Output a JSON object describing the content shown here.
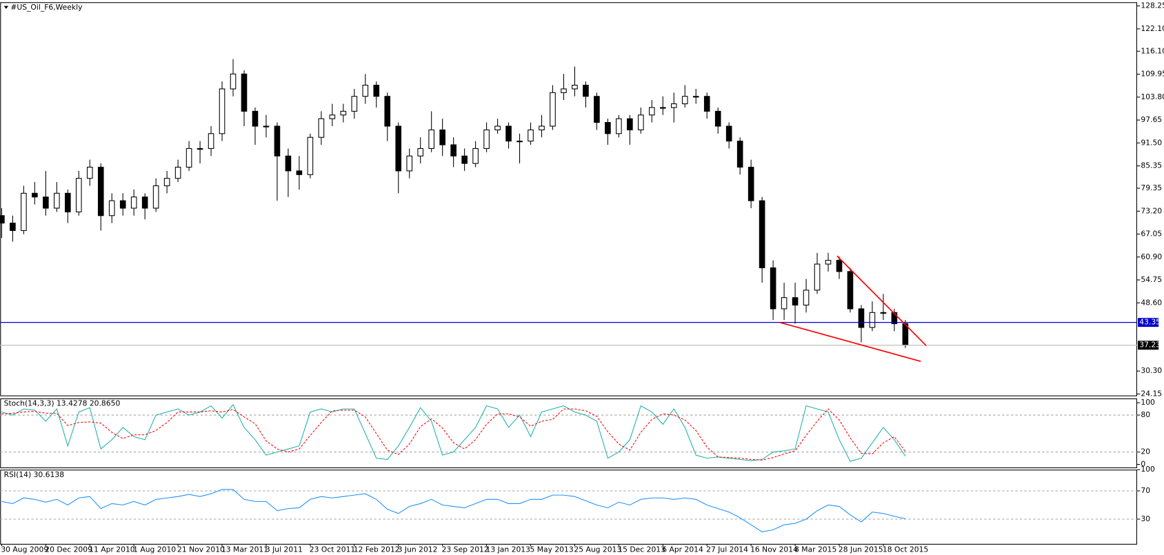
{
  "chart_data": [
    {
      "type": "candlestick",
      "title": "#US_Oil_F6,Weekly",
      "categories": [
        "30 Aug 2009",
        null,
        null,
        null,
        "20 Dec 2009",
        null,
        null,
        null,
        "11 Apr 2010",
        null,
        null,
        null,
        "1 Aug 2010",
        null,
        null,
        null,
        "21 Nov 2010",
        null,
        null,
        null,
        "13 Mar 2011",
        null,
        null,
        null,
        "3 Jul 2011",
        null,
        null,
        null,
        "23 Oct 2011",
        null,
        null,
        null,
        "12 Feb 2012",
        null,
        null,
        null,
        "3 Jun 2012",
        null,
        null,
        null,
        "23 Sep 2012",
        null,
        null,
        null,
        "13 Jan 2013",
        null,
        null,
        null,
        "5 May 2013",
        null,
        null,
        null,
        "25 Aug 2013",
        null,
        null,
        null,
        "15 Dec 2013",
        null,
        null,
        null,
        "6 Apr 2014",
        null,
        null,
        null,
        "27 Jul 2014",
        null,
        null,
        null,
        "16 Nov 2014",
        null,
        null,
        null,
        "8 Mar 2015",
        null,
        null,
        null,
        "28 Jun 2015",
        null,
        null,
        null,
        "18 Oct 2015",
        null,
        null
      ],
      "ohlc": [
        [
          72,
          74,
          66,
          70
        ],
        [
          70,
          72,
          65,
          68
        ],
        [
          68,
          80,
          67,
          78
        ],
        [
          78,
          81,
          75,
          77
        ],
        [
          77,
          84,
          72,
          74
        ],
        [
          74,
          81,
          73,
          78
        ],
        [
          78,
          79,
          70,
          73
        ],
        [
          73,
          84,
          72,
          82
        ],
        [
          82,
          87,
          80,
          85
        ],
        [
          85,
          86,
          68,
          72
        ],
        [
          72,
          78,
          70,
          76
        ],
        [
          76,
          78,
          72,
          74
        ],
        [
          74,
          79,
          72,
          77
        ],
        [
          77,
          78,
          71,
          74
        ],
        [
          74,
          82,
          73,
          80
        ],
        [
          80,
          84,
          78,
          82
        ],
        [
          82,
          87,
          81,
          85
        ],
        [
          85,
          92,
          84,
          90
        ],
        [
          90,
          92,
          86,
          90
        ],
        [
          90,
          96,
          88,
          94
        ],
        [
          94,
          108,
          92,
          106
        ],
        [
          106,
          114,
          104,
          110
        ],
        [
          110,
          111,
          96,
          100
        ],
        [
          100,
          101,
          91,
          96
        ],
        [
          96,
          99,
          93,
          96
        ],
        [
          96,
          97,
          76,
          88
        ],
        [
          88,
          90,
          77,
          84
        ],
        [
          84,
          88,
          79,
          83
        ],
        [
          83,
          94,
          82,
          93
        ],
        [
          93,
          100,
          91,
          98
        ],
        [
          98,
          102,
          96,
          99
        ],
        [
          99,
          102,
          97,
          100
        ],
        [
          100,
          106,
          98,
          104
        ],
        [
          104,
          110,
          102,
          107
        ],
        [
          107,
          108,
          101,
          104
        ],
        [
          104,
          105,
          92,
          96
        ],
        [
          96,
          97,
          78,
          84
        ],
        [
          84,
          90,
          82,
          88
        ],
        [
          88,
          93,
          86,
          90
        ],
        [
          90,
          100,
          89,
          95
        ],
        [
          95,
          98,
          88,
          91
        ],
        [
          91,
          93,
          85,
          88
        ],
        [
          88,
          90,
          84,
          86
        ],
        [
          86,
          92,
          85,
          90
        ],
        [
          90,
          97,
          89,
          95
        ],
        [
          95,
          98,
          94,
          96
        ],
        [
          96,
          97,
          90,
          92
        ],
        [
          92,
          94,
          86,
          92
        ],
        [
          92,
          97,
          91,
          95
        ],
        [
          95,
          99,
          93,
          96
        ],
        [
          96,
          107,
          95,
          105
        ],
        [
          105,
          110,
          103,
          106
        ],
        [
          106,
          112,
          104,
          107
        ],
        [
          107,
          108,
          101,
          104
        ],
        [
          104,
          105,
          95,
          97
        ],
        [
          97,
          98,
          91,
          94
        ],
        [
          94,
          99,
          93,
          98
        ],
        [
          98,
          99,
          91,
          95
        ],
        [
          95,
          101,
          94,
          99
        ],
        [
          99,
          103,
          97,
          101
        ],
        [
          101,
          104,
          99,
          101
        ],
        [
          101,
          105,
          97,
          102
        ],
        [
          102,
          107,
          101,
          104
        ],
        [
          104,
          106,
          102,
          104
        ],
        [
          104,
          105,
          98,
          100
        ],
        [
          100,
          101,
          94,
          96
        ],
        [
          96,
          97,
          90,
          92
        ],
        [
          92,
          93,
          83,
          85
        ],
        [
          85,
          87,
          74,
          76
        ],
        [
          76,
          77,
          54,
          58
        ],
        [
          58,
          60,
          44,
          47
        ],
        [
          47,
          54,
          44,
          50
        ],
        [
          50,
          54,
          43,
          48
        ],
        [
          48,
          55,
          46,
          52
        ],
        [
          52,
          62,
          51,
          59
        ],
        [
          59,
          62,
          57,
          60
        ],
        [
          60,
          61,
          55,
          57
        ],
        [
          57,
          58,
          46,
          47
        ],
        [
          47,
          48,
          38,
          42
        ],
        [
          42,
          49,
          41,
          46
        ],
        [
          46,
          51,
          44,
          46
        ],
        [
          46,
          47,
          41,
          43
        ],
        [
          43,
          44,
          36.5,
          37.23
        ]
      ],
      "color_up": "#ffffff",
      "color_down": "#000000",
      "color_outline": "#000000",
      "ylim": [
        23.75,
        129.25
      ],
      "yticks": [
        24.15,
        {
          "value": 30.3,
          "label": "30.30"
        },
        {
          "value": 48.6,
          "label": "48.60"
        },
        54.75,
        {
          "value": 60.9,
          "label": "60.90"
        },
        67.05,
        {
          "value": 73.2,
          "label": "73.20"
        },
        79.35,
        85.35,
        {
          "value": 91.5,
          "label": "91.50"
        },
        97.65,
        {
          "value": 103.8,
          "label": "103.80"
        },
        109.95,
        {
          "value": 116.1,
          "label": "116.10"
        },
        {
          "value": 122.1,
          "label": "122.10"
        },
        128.25
      ],
      "price_lines": [
        {
          "value": 43.35,
          "color": "#0000cc"
        },
        {
          "value": 37.23,
          "color": "#c0c0c0"
        }
      ],
      "trendlines": [
        {
          "x": [
            75.8,
            83.9
          ],
          "y": [
            61.2,
            37.1
          ],
          "color": "#ff0000"
        },
        {
          "x": [
            70.6,
            83.4
          ],
          "y": [
            43.35,
            32.9
          ],
          "color": "#ff0000"
        }
      ]
    },
    {
      "type": "line",
      "title": "Stoch(14,3,3) 13.4278 20.8650",
      "series": [
        {
          "color": "#20b2aa",
          "style": "solid",
          "values": [
            85,
            80,
            90,
            88,
            70,
            90,
            30,
            85,
            92,
            25,
            40,
            60,
            45,
            40,
            80,
            85,
            90,
            80,
            85,
            95,
            75,
            97,
            60,
            40,
            15,
            20,
            25,
            30,
            85,
            90,
            85,
            90,
            90,
            50,
            10,
            8,
            30,
            60,
            92,
            70,
            15,
            20,
            40,
            60,
            95,
            90,
            60,
            80,
            45,
            85,
            90,
            95,
            85,
            80,
            70,
            10,
            20,
            40,
            95,
            85,
            65,
            90,
            60,
            15,
            10,
            12,
            10,
            8,
            6,
            8,
            20,
            22,
            25,
            95,
            90,
            85,
            40,
            5,
            10,
            35,
            60,
            40,
            13.4278
          ]
        },
        {
          "color": "#ff0000",
          "style": "dashed",
          "values": [
            82,
            83,
            85,
            86,
            83,
            83,
            63,
            68,
            69,
            67,
            52,
            42,
            48,
            48,
            55,
            68,
            85,
            85,
            85,
            87,
            85,
            89,
            77,
            66,
            38,
            25,
            20,
            25,
            47,
            68,
            87,
            88,
            88,
            77,
            50,
            23,
            16,
            33,
            61,
            74,
            59,
            35,
            25,
            40,
            65,
            82,
            82,
            77,
            62,
            70,
            73,
            90,
            90,
            87,
            78,
            53,
            33,
            23,
            52,
            73,
            82,
            80,
            72,
            55,
            28,
            12,
            11,
            10,
            8,
            7,
            11,
            17,
            22,
            47,
            70,
            90,
            72,
            43,
            18,
            17,
            35,
            45,
            20.865
          ]
        }
      ],
      "ylim": [
        -5,
        107
      ],
      "yticks": [
        0,
        20,
        80,
        100
      ],
      "levels": [
        20,
        80
      ]
    },
    {
      "type": "line",
      "title": "RSI(14) 30.6138",
      "series": [
        {
          "color": "#1e90ff",
          "style": "solid",
          "values": [
            55,
            52,
            60,
            58,
            54,
            58,
            50,
            60,
            62,
            45,
            52,
            50,
            55,
            50,
            58,
            60,
            62,
            65,
            62,
            66,
            72,
            72,
            58,
            55,
            55,
            42,
            45,
            46,
            58,
            62,
            60,
            62,
            64,
            66,
            58,
            44,
            38,
            48,
            52,
            58,
            50,
            48,
            46,
            52,
            58,
            58,
            52,
            52,
            58,
            58,
            64,
            64,
            62,
            56,
            50,
            46,
            54,
            50,
            58,
            60,
            60,
            58,
            60,
            58,
            50,
            45,
            40,
            32,
            22,
            12,
            15,
            22,
            24,
            30,
            42,
            50,
            48,
            36,
            26,
            40,
            38,
            34,
            30.6138
          ]
        }
      ],
      "ylim": [
        -5,
        100
      ],
      "yticks": [
        30,
        70,
        100
      ],
      "levels": [
        30,
        70
      ]
    }
  ]
}
